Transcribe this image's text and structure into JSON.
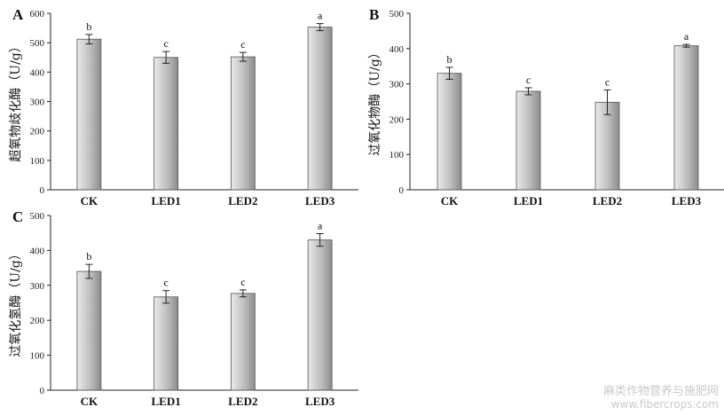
{
  "chart_data": [
    {
      "type": "bar",
      "panel": "A",
      "ylabel": "超氧物歧化酶（U/g）",
      "categories": [
        "CK",
        "LED1",
        "LED2",
        "LED3"
      ],
      "values": [
        512,
        450,
        452,
        553
      ],
      "errors": [
        16,
        20,
        15,
        12
      ],
      "significance": [
        "b",
        "c",
        "c",
        "a"
      ],
      "ylim": [
        0,
        600
      ],
      "yticks": [
        0,
        100,
        200,
        300,
        400,
        500,
        600
      ]
    },
    {
      "type": "bar",
      "panel": "B",
      "ylabel": "过氧化物酶（U/g）",
      "categories": [
        "CK",
        "LED1",
        "LED2",
        "LED3"
      ],
      "values": [
        330,
        279,
        248,
        408
      ],
      "errors": [
        17,
        10,
        35,
        4
      ],
      "significance": [
        "b",
        "c",
        "c",
        "a"
      ],
      "ylim": [
        0,
        500
      ],
      "yticks": [
        0,
        100,
        200,
        300,
        400,
        500
      ]
    },
    {
      "type": "bar",
      "panel": "C",
      "ylabel": "过氧化氢酶（U/g）",
      "categories": [
        "CK",
        "LED1",
        "LED2",
        "LED3"
      ],
      "values": [
        340,
        267,
        277,
        430
      ],
      "errors": [
        20,
        18,
        10,
        18
      ],
      "significance": [
        "b",
        "c",
        "c",
        "a"
      ],
      "ylim": [
        0,
        500
      ],
      "yticks": [
        0,
        100,
        200,
        300,
        400,
        500
      ]
    }
  ],
  "watermark": {
    "line1": "麻类作物营养与施肥网",
    "line2": "www.fibercrops.com"
  }
}
